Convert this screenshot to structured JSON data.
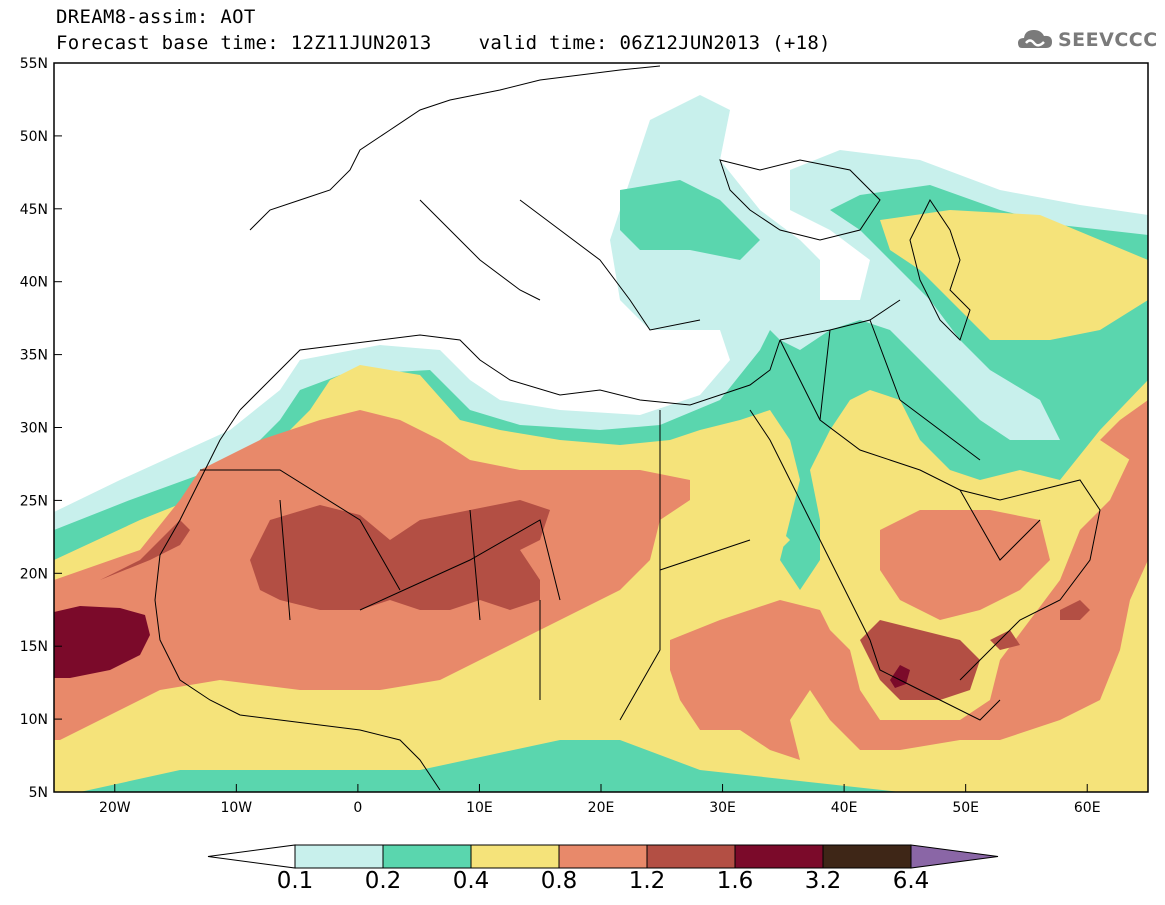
{
  "title": "DREAM8-assim: AOT",
  "base_time_label": "Forecast base time: 12Z11JUN2013",
  "valid_time_label": "valid time: 06Z12JUN2013 (+18)",
  "logo_text": "SEEVCCC",
  "lat_labels": [
    "55N",
    "50N",
    "45N",
    "40N",
    "35N",
    "30N",
    "25N",
    "20N",
    "15N",
    "10N",
    "5N"
  ],
  "lon_labels": [
    "20W",
    "10W",
    "0",
    "10E",
    "20E",
    "30E",
    "40E",
    "50E",
    "60E"
  ],
  "colorbar": {
    "levels": [
      "0.1",
      "0.2",
      "0.4",
      "0.8",
      "1.2",
      "1.6",
      "3.2",
      "6.4"
    ],
    "colors": [
      "#ffffff",
      "#c8f0ec",
      "#5ad6ae",
      "#f5e37a",
      "#e8896a",
      "#b34f44",
      "#7b0a2a",
      "#3e2617",
      "#8a66a6"
    ]
  }
}
